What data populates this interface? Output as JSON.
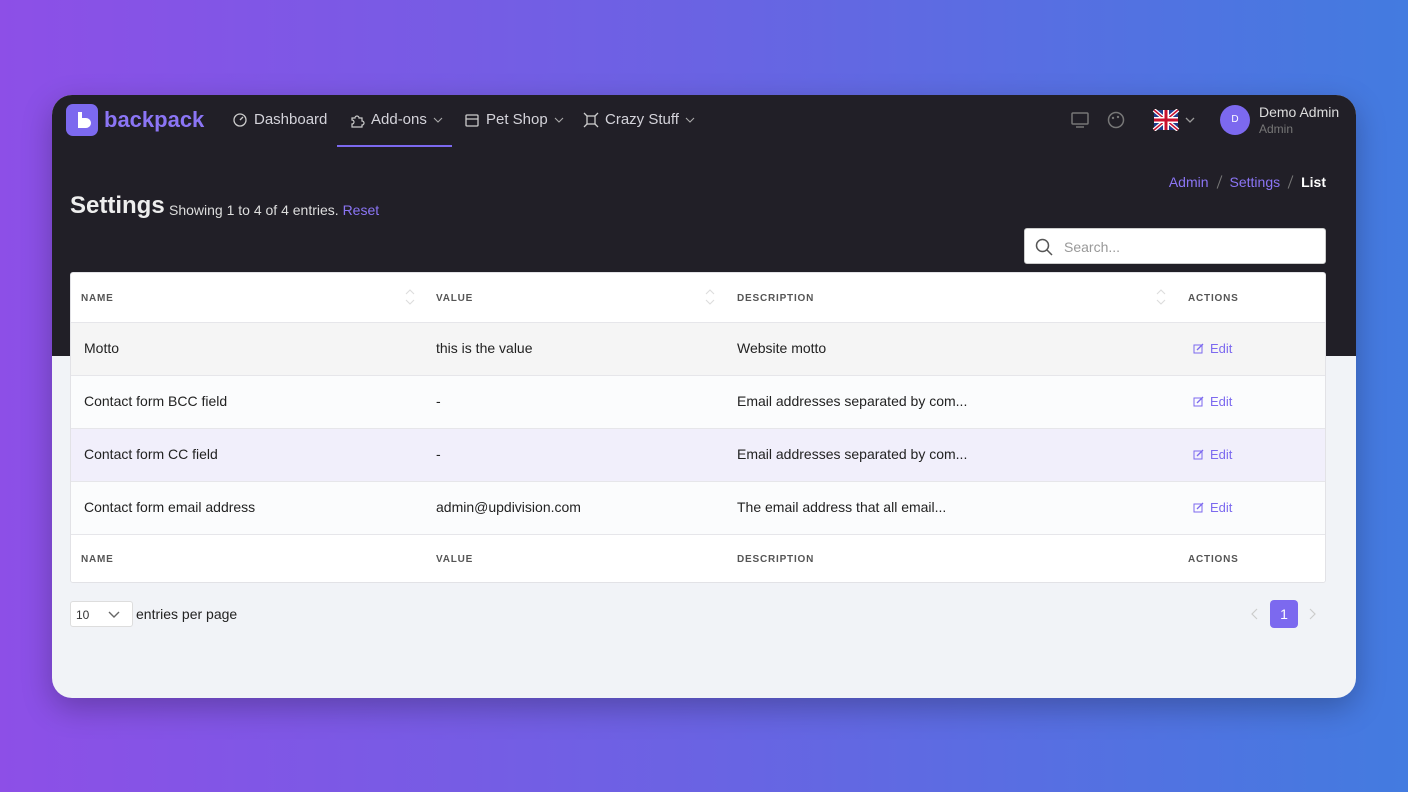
{
  "brand": "backpack",
  "nav": [
    "Dashboard",
    "Add-ons",
    "Pet Shop",
    "Crazy Stuff"
  ],
  "user": {
    "initial": "D",
    "name": "Demo Admin",
    "role": "Admin"
  },
  "breadcrumb": [
    "Admin",
    "Settings",
    "List"
  ],
  "page": {
    "title": "Settings",
    "subtitle": "Showing 1 to 4 of 4 entries.",
    "reset": "Reset"
  },
  "search": {
    "placeholder": "Search..."
  },
  "table": {
    "headers": [
      "NAME",
      "VALUE",
      "DESCRIPTION",
      "ACTIONS"
    ],
    "rows": [
      [
        "Motto",
        "this is the value",
        "Website motto",
        "Edit"
      ],
      [
        "Contact form BCC field",
        "-",
        "Email addresses separated by com...",
        "Edit"
      ],
      [
        "Contact form CC field",
        "-",
        "Email addresses separated by com...",
        "Edit"
      ],
      [
        "Contact form email address",
        "admin@updivision.com",
        "The email address that all email...",
        "Edit"
      ]
    ]
  },
  "pagination": {
    "per_page": "10",
    "per_page_label": "entries per page",
    "current": "1"
  }
}
